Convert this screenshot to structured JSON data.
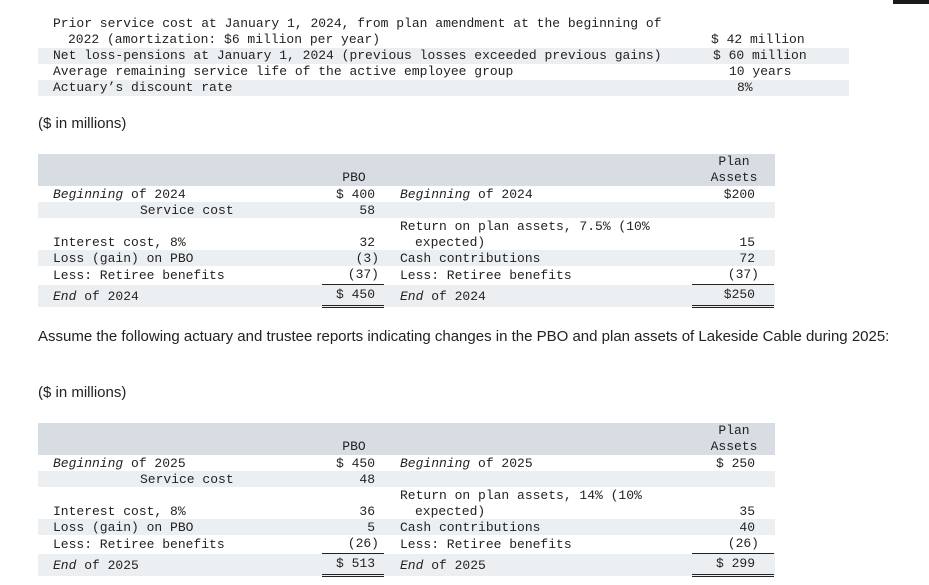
{
  "assumptions": {
    "row1_line1": "Prior service cost at January 1, 2024, from plan amendment at the beginning of",
    "row1_line2": "2022 (amortization: $6 million per year)",
    "row1_value": "$ 42 million",
    "row2_label": "Net loss-pensions at January 1, 2024 (previous losses exceeded previous gains)",
    "row2_value": "$ 60 million",
    "row3_label": "Average remaining service life of the active employee group",
    "row3_value": "10 years",
    "row4_label": "Actuary’s discount rate",
    "row4_value": "8%"
  },
  "units_note_1": "($ in millions)",
  "table2024": {
    "pbo_header": "PBO",
    "assets_header_1": "Plan",
    "assets_header_2": "Assets",
    "left": {
      "beginning_em": "Beginning",
      "beginning_rest": " of 2024",
      "beginning_value": "$ 400",
      "service_cost": "Service cost",
      "service_cost_value": "58",
      "interest": "Interest cost, 8%",
      "interest_value": "32",
      "loss": "Loss (gain) on PBO",
      "loss_value": "(3)",
      "retiree": "Less: Retiree benefits",
      "retiree_value": "(37)",
      "end_em": "End",
      "end_rest": " of 2024",
      "end_value": "$ 450"
    },
    "right": {
      "beginning_em": "Beginning",
      "beginning_rest": " of 2024",
      "beginning_value": "$200",
      "return_line1": "Return on plan assets, 7.5% (10%",
      "return_line2": "expected)",
      "return_value": "15",
      "cash": "Cash contributions",
      "cash_value": "72",
      "retiree": "Less: Retiree benefits",
      "retiree_value": "(37)",
      "end_em": "End",
      "end_rest": " of 2024",
      "end_value": "$250"
    }
  },
  "assume_text": "Assume the following actuary and trustee reports indicating changes in the PBO and plan assets of Lakeside Cable during 2025:",
  "units_note_2": "($ in millions)",
  "table2025": {
    "pbo_header": "PBO",
    "assets_header_1": "Plan",
    "assets_header_2": "Assets",
    "left": {
      "beginning_em": "Beginning",
      "beginning_rest": " of 2025",
      "beginning_value": "$ 450",
      "service_cost": "Service cost",
      "service_cost_value": "48",
      "interest": "Interest cost, 8%",
      "interest_value": "36",
      "loss": "Loss (gain) on PBO",
      "loss_value": "5",
      "retiree": "Less: Retiree benefits",
      "retiree_value": "(26)",
      "end_em": "End",
      "end_rest": " of 2025",
      "end_value": "$ 513"
    },
    "right": {
      "beginning_em": "Beginning",
      "beginning_rest": " of 2025",
      "beginning_value": "$ 250",
      "return_line1": "Return on plan assets, 14% (10%",
      "return_line2": "expected)",
      "return_value": "35",
      "cash": "Cash contributions",
      "cash_value": "40",
      "retiree": "Less: Retiree benefits",
      "retiree_value": "(26)",
      "end_em": "End",
      "end_rest": " of 2025",
      "end_value": "$ 299"
    }
  }
}
